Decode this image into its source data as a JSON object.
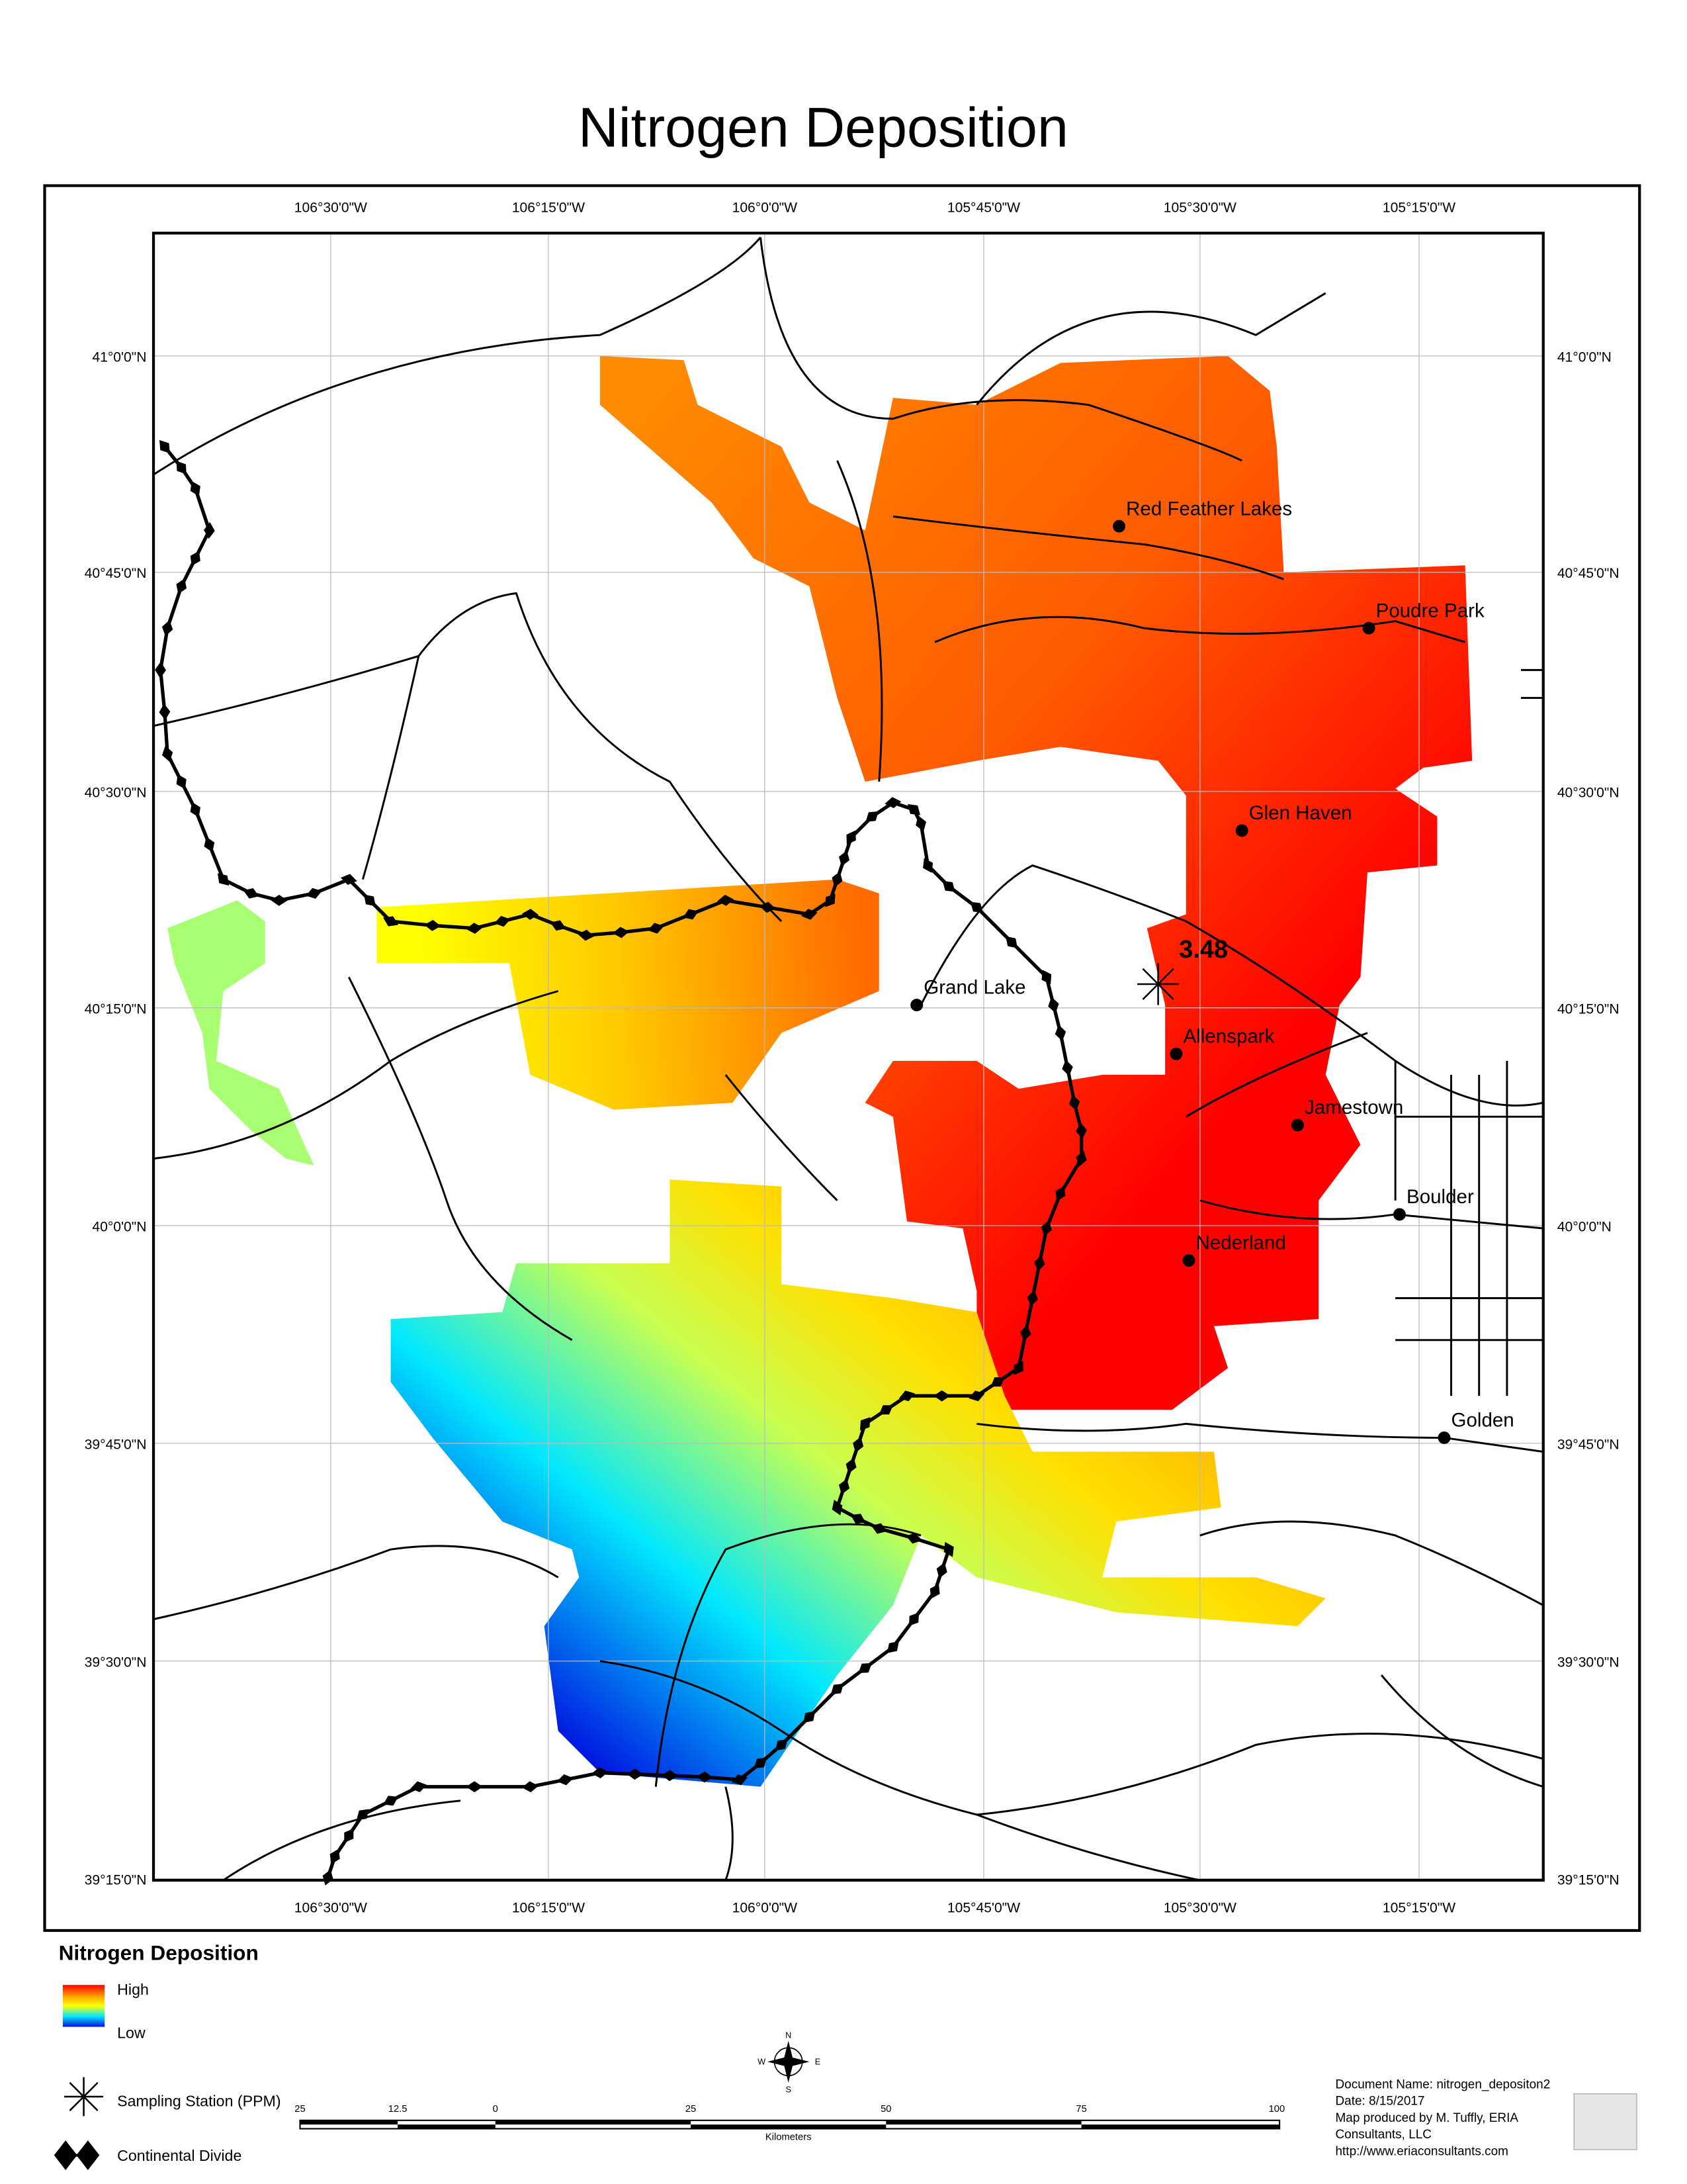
{
  "title": "Nitrogen Deposition",
  "graticule": {
    "longitudes": [
      "106°30'0\"W",
      "106°15'0\"W",
      "106°0'0\"W",
      "105°45'0\"W",
      "105°30'0\"W",
      "105°15'0\"W"
    ],
    "latitudes": [
      "41°0'0\"N",
      "40°45'0\"N",
      "40°30'0\"N",
      "40°15'0\"N",
      "40°0'0\"N",
      "39°45'0\"N",
      "39°30'0\"N",
      "39°15'0\"N"
    ]
  },
  "towns": [
    {
      "label": "Red Feather Lakes"
    },
    {
      "label": "Poudre Park"
    },
    {
      "label": "Glen Haven"
    },
    {
      "label": "Grand Lake"
    },
    {
      "label": "Allenspark"
    },
    {
      "label": "Jamestown"
    },
    {
      "label": "Boulder"
    },
    {
      "label": "Nederland"
    },
    {
      "label": "Golden"
    }
  ],
  "station": {
    "value": "3.48"
  },
  "legend": {
    "title": "Nitrogen Deposition",
    "high": "High",
    "low": "Low",
    "station": "Sampling Station (PPM)",
    "divide": "Continental Divide"
  },
  "north_arrow": {
    "n": "N",
    "s": "S",
    "e": "E",
    "w": "W"
  },
  "scale_bar": {
    "labels": [
      "25",
      "12.5",
      "0",
      "25",
      "50",
      "75",
      "100"
    ],
    "unit": "Kilometers"
  },
  "document": [
    "Document Name: nitrogen_depositon2",
    "Date: 8/15/2017",
    "Map produced by M. Tuffly, ERIA",
    "Consultants, LLC",
    "http://www.eriaconsultants.com"
  ]
}
